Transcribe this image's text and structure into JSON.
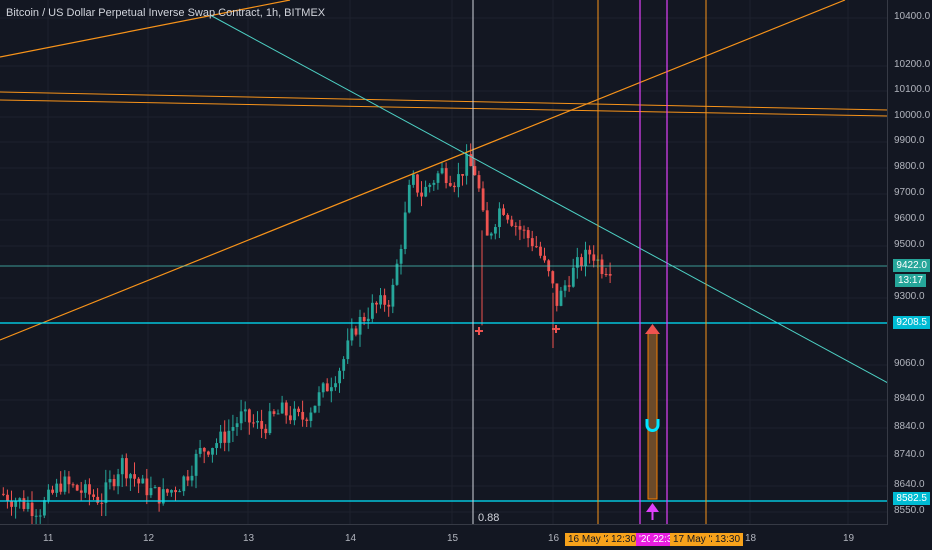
{
  "header": {
    "title": "Bitcoin / US Dollar Perpetual Inverse Swap Contract, 1h, BITMEX"
  },
  "price_axis": {
    "ticks": [
      "10400.0",
      "10200.0",
      "10100.0",
      "10000.0",
      "9900.0",
      "9800.0",
      "9700.0",
      "9600.0",
      "9500.0",
      "9300.0",
      "9060.0",
      "8940.0",
      "8840.0",
      "8740.0",
      "8640.0",
      "8550.0"
    ],
    "current_price": "9422.0",
    "countdown": "13:17",
    "level_upper": "9208.5",
    "level_lower": "8582.5"
  },
  "time_axis": {
    "ticks": [
      "11",
      "12",
      "13",
      "14",
      "15",
      "16",
      "18",
      "19"
    ],
    "highlight_start": "16 May '20",
    "highlight_start_time": "12:30",
    "highlight_mid_prefix": "'20",
    "highlight_mid_time": "22:3",
    "highlight_end": "17 May '20",
    "highlight_end_time": "13:30"
  },
  "annotation": {
    "fib_label": "0.88"
  },
  "colors": {
    "background": "#131722",
    "up": "#26a69a",
    "down": "#ef5350",
    "trend_orange": "#f7931a",
    "trend_teal": "#4dd0c4",
    "level_cyan": "#00e5ff",
    "marker_magenta": "#e040fb",
    "axis_tag_orange": "#f7a21b",
    "axis_tag_magenta": "#e91ee0"
  },
  "chart_data": {
    "type": "candlestick",
    "x_range": [
      "10 May '20",
      "19 May '20"
    ],
    "ylim": [
      8500,
      10450
    ],
    "horizontal_levels": [
      9422.0,
      9208.5,
      8582.5
    ],
    "projection_arrow": {
      "from": 8582.5,
      "to": 9208.5
    }
  }
}
